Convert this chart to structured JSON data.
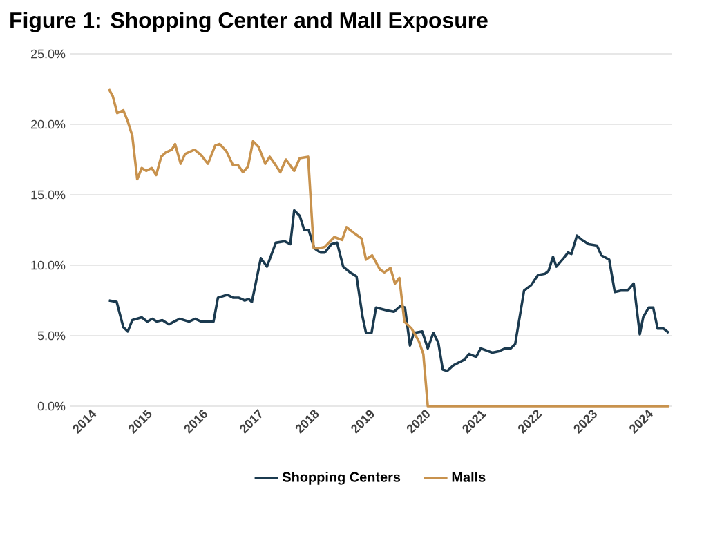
{
  "chart_data": {
    "type": "line",
    "title": "Figure 1: Shopping Center and Mall Exposure",
    "xlim": [
      2013.75,
      2024.55
    ],
    "xticks": [
      2014,
      2015,
      2016,
      2017,
      2018,
      2019,
      2020,
      2021,
      2022,
      2023,
      2024
    ],
    "ylim": [
      0,
      25
    ],
    "yticks": [
      {
        "value": 0,
        "label": "0.0%"
      },
      {
        "value": 5,
        "label": "5.0%"
      },
      {
        "value": 10,
        "label": "10.0%"
      },
      {
        "value": 15,
        "label": "15.0%"
      },
      {
        "value": 20,
        "label": "20.0%"
      },
      {
        "value": 25,
        "label": "25.0%"
      }
    ],
    "grid": "y",
    "legend": "bottom",
    "marker": "none",
    "line_style": "solid",
    "series": [
      {
        "name": "Shopping Centers",
        "color": "#1b3a4f",
        "x": [
          2014.44,
          2014.58,
          2014.7,
          2014.78,
          2014.86,
          2015.03,
          2015.13,
          2015.22,
          2015.3,
          2015.4,
          2015.52,
          2015.71,
          2015.88,
          2015.99,
          2016.1,
          2016.32,
          2016.4,
          2016.57,
          2016.67,
          2016.77,
          2016.88,
          2016.95,
          2017.01,
          2017.17,
          2017.28,
          2017.44,
          2017.6,
          2017.7,
          2017.77,
          2017.87,
          2017.95,
          2018.03,
          2018.13,
          2018.24,
          2018.32,
          2018.44,
          2018.54,
          2018.65,
          2018.77,
          2018.89,
          2019.0,
          2019.06,
          2019.16,
          2019.24,
          2019.43,
          2019.56,
          2019.68,
          2019.76,
          2019.85,
          2019.92,
          2020.07,
          2020.17,
          2020.27,
          2020.36,
          2020.44,
          2020.52,
          2020.63,
          2020.83,
          2020.91,
          2021.04,
          2021.12,
          2021.33,
          2021.45,
          2021.56,
          2021.66,
          2021.74,
          2021.9,
          2022.03,
          2022.15,
          2022.28,
          2022.34,
          2022.42,
          2022.48,
          2022.61,
          2022.69,
          2022.75,
          2022.85,
          2022.94,
          2023.06,
          2023.21,
          2023.29,
          2023.43,
          2023.53,
          2023.64,
          2023.76,
          2023.87,
          2023.98,
          2024.04,
          2024.14,
          2024.22,
          2024.3,
          2024.41,
          2024.5
        ],
        "values": [
          7.5,
          7.4,
          5.6,
          5.3,
          6.1,
          6.3,
          6.0,
          6.2,
          6.0,
          6.1,
          5.8,
          6.2,
          6.0,
          6.2,
          6.0,
          6.0,
          7.7,
          7.9,
          7.7,
          7.7,
          7.5,
          7.6,
          7.4,
          10.5,
          9.9,
          11.6,
          11.7,
          11.5,
          13.9,
          13.5,
          12.5,
          12.5,
          11.2,
          10.9,
          10.9,
          11.5,
          11.6,
          9.9,
          9.5,
          9.2,
          6.3,
          5.2,
          5.2,
          7.0,
          6.8,
          6.7,
          7.1,
          7.0,
          4.3,
          5.2,
          5.3,
          4.1,
          5.2,
          4.5,
          2.6,
          2.5,
          2.9,
          3.3,
          3.7,
          3.5,
          4.1,
          3.8,
          3.9,
          4.1,
          4.1,
          4.4,
          8.2,
          8.6,
          9.3,
          9.4,
          9.6,
          10.6,
          9.9,
          10.5,
          10.9,
          10.8,
          12.1,
          11.8,
          11.5,
          11.4,
          10.7,
          10.4,
          8.1,
          8.2,
          8.2,
          8.7,
          5.1,
          6.3,
          7.0,
          7.0,
          5.5,
          5.5,
          5.2
        ]
      },
      {
        "name": "Malls",
        "color": "#c8924d",
        "x": [
          2014.44,
          2014.51,
          2014.59,
          2014.7,
          2014.78,
          2014.86,
          2014.95,
          2015.03,
          2015.11,
          2015.21,
          2015.29,
          2015.38,
          2015.46,
          2015.57,
          2015.63,
          2015.73,
          2015.81,
          2015.98,
          2016.1,
          2016.22,
          2016.35,
          2016.43,
          2016.55,
          2016.67,
          2016.76,
          2016.85,
          2016.94,
          2017.03,
          2017.13,
          2017.25,
          2017.33,
          2017.42,
          2017.52,
          2017.62,
          2017.77,
          2017.87,
          2018.02,
          2018.12,
          2018.21,
          2018.32,
          2018.49,
          2018.63,
          2018.71,
          2018.84,
          2018.98,
          2019.06,
          2019.17,
          2019.31,
          2019.39,
          2019.5,
          2019.58,
          2019.66,
          2019.75,
          2019.88,
          2020.01,
          2020.09,
          2020.17,
          2024.5
        ],
        "values": [
          22.5,
          22.0,
          20.8,
          21.0,
          20.2,
          19.2,
          16.1,
          16.9,
          16.7,
          16.9,
          16.4,
          17.7,
          18.0,
          18.2,
          18.6,
          17.2,
          17.9,
          18.2,
          17.8,
          17.2,
          18.5,
          18.6,
          18.1,
          17.1,
          17.1,
          16.6,
          17.0,
          18.8,
          18.4,
          17.2,
          17.7,
          17.2,
          16.6,
          17.5,
          16.7,
          17.6,
          17.7,
          11.2,
          11.2,
          11.3,
          12.0,
          11.8,
          12.7,
          12.3,
          11.9,
          10.4,
          10.7,
          9.7,
          9.5,
          9.8,
          8.7,
          9.1,
          6.0,
          5.5,
          4.6,
          3.7,
          0,
          0
        ]
      }
    ]
  }
}
